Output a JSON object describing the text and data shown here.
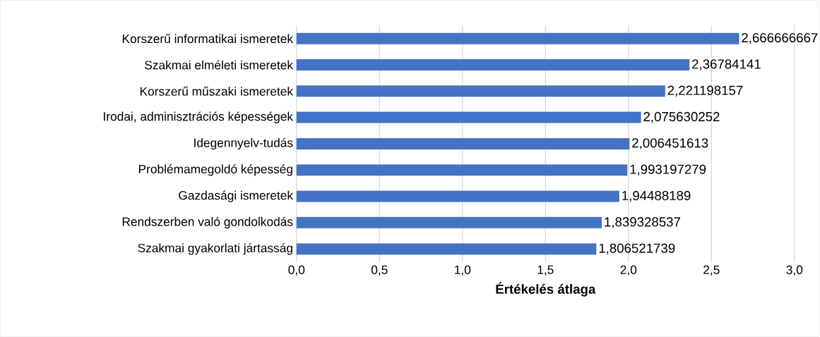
{
  "chart_data": {
    "type": "bar",
    "orientation": "horizontal",
    "xlabel": "Értékelés átlaga",
    "categories": [
      "Korszerű informatikai ismeretek",
      "Szakmai elméleti ismeretek",
      "Korszerű műszaki ismeretek",
      "Irodai, adminisztrációs képességek",
      "Idegennyelv-tudás",
      "Problémamegoldó képesség",
      "Gazdasági ismeretek",
      "Rendszerben való gondolkodás",
      "Szakmai gyakorlati jártasság"
    ],
    "values": [
      2.666666667,
      2.36784141,
      2.221198157,
      2.075630252,
      2.006451613,
      1.993197279,
      1.94488189,
      1.839328537,
      1.806521739
    ],
    "value_labels": [
      "2,666666667",
      "2,36784141",
      "2,221198157",
      "2,075630252",
      "2,006451613",
      "1,993197279",
      "1,94488189",
      "1,839328537",
      "1,806521739"
    ],
    "color": "#4472c4",
    "xlim": [
      0,
      3
    ],
    "xticks": [
      {
        "value": 0,
        "label": "0,0"
      },
      {
        "value": 0.5,
        "label": "0,5"
      },
      {
        "value": 1,
        "label": "1,0"
      },
      {
        "value": 1.5,
        "label": "1,5"
      },
      {
        "value": 2,
        "label": "2,0"
      },
      {
        "value": 2.5,
        "label": "2,5"
      },
      {
        "value": 3,
        "label": "3,0"
      }
    ],
    "grid": "x"
  }
}
